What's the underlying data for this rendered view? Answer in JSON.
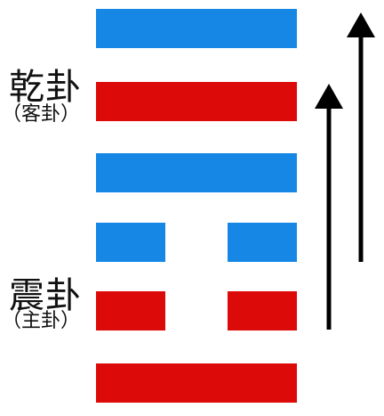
{
  "upper_trigram": {
    "name": "乾卦",
    "role": "（客卦）"
  },
  "lower_trigram": {
    "name": "震卦",
    "role": "（主卦）"
  },
  "lines_top_to_bottom": [
    {
      "type": "solid",
      "color": "#1787e6"
    },
    {
      "type": "solid",
      "color": "#dd0a0a"
    },
    {
      "type": "solid",
      "color": "#1787e6"
    },
    {
      "type": "broken",
      "color": "#1787e6"
    },
    {
      "type": "broken",
      "color": "#dd0a0a"
    },
    {
      "type": "solid",
      "color": "#dd0a0a"
    }
  ],
  "colors": {
    "blue": "#1787e6",
    "red": "#dd0a0a",
    "arrow": "#000000"
  }
}
